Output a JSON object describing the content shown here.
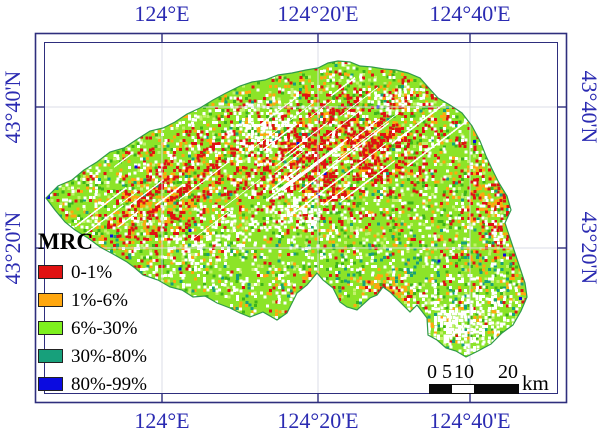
{
  "figure": {
    "axes": {
      "top": [
        "124°E",
        "124°20'E",
        "124°40'E"
      ],
      "bottom": [
        "124°E",
        "124°20'E",
        "124°40'E"
      ],
      "left": [
        "43°40'N",
        "43°20'N"
      ],
      "right": [
        "43°40'N",
        "43°20'N"
      ]
    },
    "legend": {
      "title": "MRC",
      "items": [
        {
          "label": "0-1%",
          "color": "#e01212"
        },
        {
          "label": "1%-6%",
          "color": "#ffa70f"
        },
        {
          "label": "6%-30%",
          "color": "#7ef01e"
        },
        {
          "label": "30%-80%",
          "color": "#17a07b"
        },
        {
          "label": "80%-99%",
          "color": "#0b0be0"
        }
      ]
    },
    "scale_bar": {
      "tick_labels": [
        "0",
        "5",
        "10",
        "20"
      ],
      "unit": "km"
    },
    "colors": {
      "axis_label": "#2b2bb2",
      "frame": "#2e2e7d",
      "gridline": "#dadce6",
      "map_base": "#8ce428",
      "map_dark_green": "#3db31c",
      "map_pale_green": "#c4f26e",
      "boundary_rim": "#2f9a4a"
    }
  }
}
